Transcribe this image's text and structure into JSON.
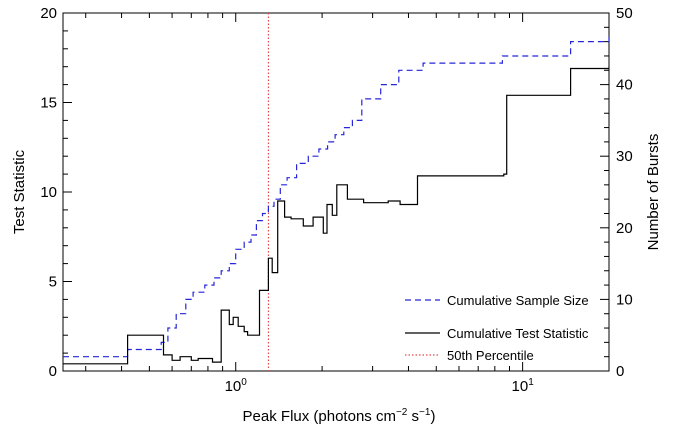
{
  "chart_data": {
    "type": "line",
    "xscale": "log",
    "xlim": [
      0.25,
      20
    ],
    "ylim_left": [
      0,
      20
    ],
    "ylim_right": [
      0,
      50
    ],
    "xlabel": "Peak Flux (photons cm",
    "xlabel_sup1": "−2",
    "xlabel_mid": " s",
    "xlabel_sup2": "−1",
    "xlabel_end": ")",
    "ylabel_left": "Test Statistic",
    "ylabel_right": "Number of Bursts",
    "x_ticks": [
      {
        "value": 1,
        "base": "10",
        "exp": "0"
      },
      {
        "value": 10,
        "base": "10",
        "exp": "1"
      }
    ],
    "y_left_ticks": [
      "0",
      "5",
      "10",
      "15",
      "20"
    ],
    "y_right_ticks": [
      "0",
      "10",
      "20",
      "30",
      "40",
      "50"
    ],
    "legend_position": "bottom-right",
    "vline": {
      "name": "50th Percentile",
      "x": 1.3,
      "color": "#e8474a"
    },
    "series": [
      {
        "name": "Cumulative Sample Size",
        "axis": "right",
        "style": "dashed",
        "color": "#2626d9",
        "x": [
          0.25,
          0.42,
          0.55,
          0.58,
          0.62,
          0.67,
          0.71,
          0.78,
          0.84,
          0.89,
          0.95,
          1.0,
          1.07,
          1.13,
          1.18,
          1.24,
          1.3,
          1.36,
          1.43,
          1.51,
          1.63,
          1.79,
          1.95,
          2.09,
          2.22,
          2.38,
          2.55,
          2.75,
          3.2,
          3.7,
          4.5,
          8.5,
          14.7,
          20
        ],
        "y": [
          2,
          3,
          4,
          6,
          8,
          10,
          11,
          12,
          13,
          14,
          15,
          17,
          18,
          19,
          21,
          22,
          23,
          24,
          26,
          27,
          29,
          30,
          31,
          32,
          33,
          34,
          35,
          38,
          40,
          42,
          43,
          44,
          46,
          47
        ]
      },
      {
        "name": "Cumulative Test Statistic",
        "axis": "left",
        "style": "solid",
        "color": "#000000",
        "x": [
          0.25,
          0.42,
          0.56,
          0.6,
          0.64,
          0.7,
          0.74,
          0.83,
          0.89,
          0.95,
          0.98,
          1.02,
          1.07,
          1.1,
          1.21,
          1.3,
          1.34,
          1.4,
          1.48,
          1.56,
          1.72,
          1.86,
          2.02,
          2.08,
          2.17,
          2.25,
          2.45,
          2.79,
          3.4,
          3.74,
          4.3,
          8.6,
          8.8,
          14.7,
          20
        ],
        "y": [
          0.4,
          2.0,
          0.9,
          0.6,
          0.8,
          0.6,
          0.7,
          0.5,
          3.4,
          2.6,
          3.0,
          2.5,
          2.2,
          2.0,
          4.5,
          6.3,
          5.5,
          9.5,
          8.6,
          8.5,
          8.1,
          8.6,
          7.7,
          9.3,
          8.7,
          10.4,
          9.6,
          9.4,
          9.5,
          9.3,
          10.9,
          11.0,
          15.4,
          16.9,
          17.0
        ]
      }
    ]
  }
}
